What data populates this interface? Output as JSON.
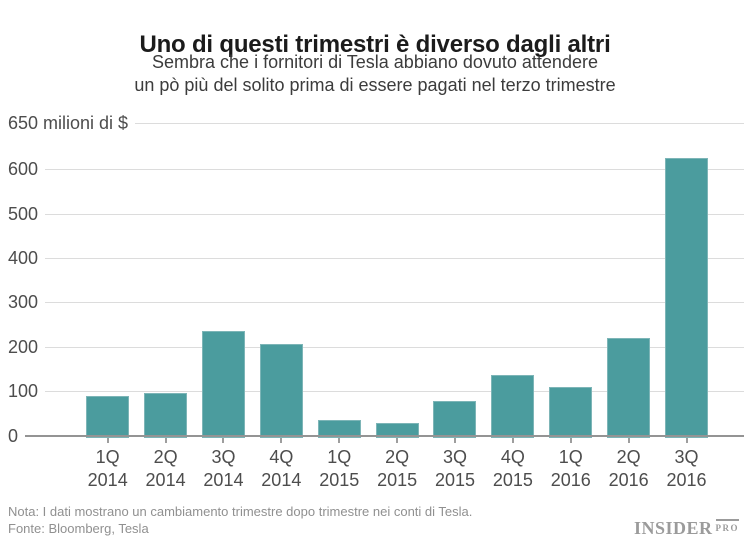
{
  "header": {
    "title": "Uno di questi trimestri è diverso dagli altri",
    "subtitle_line1": "Sembra che i fornitori di Tesla abbiano dovuto attendere",
    "subtitle_line2": "un pò più del solito prima di essere pagati nel terzo trimestre"
  },
  "chart_data": {
    "type": "bar",
    "title": "Uno di questi trimestri è diverso dagli altri",
    "subtitle": "Sembra che i fornitori di Tesla abbiano dovuto attendere un pò più del solito prima di essere pagati nel terzo trimestre",
    "y_axis_top_label": "650 milioni di $",
    "ylabel": "milioni di $",
    "xlabel": "",
    "ylim": [
      0,
      650
    ],
    "y_ticks": [
      0,
      100,
      200,
      300,
      400,
      500,
      600
    ],
    "grid": true,
    "legend": "none",
    "categories": [
      {
        "quarter": "1Q",
        "year": "2014"
      },
      {
        "quarter": "2Q",
        "year": "2014"
      },
      {
        "quarter": "3Q",
        "year": "2014"
      },
      {
        "quarter": "4Q",
        "year": "2014"
      },
      {
        "quarter": "1Q",
        "year": "2015"
      },
      {
        "quarter": "2Q",
        "year": "2015"
      },
      {
        "quarter": "3Q",
        "year": "2015"
      },
      {
        "quarter": "4Q",
        "year": "2015"
      },
      {
        "quarter": "1Q",
        "year": "2016"
      },
      {
        "quarter": "2Q",
        "year": "2016"
      },
      {
        "quarter": "3Q",
        "year": "2016"
      }
    ],
    "values": [
      90,
      98,
      238,
      208,
      36,
      30,
      80,
      139,
      112,
      222,
      626
    ]
  },
  "footer": {
    "note": "Nota: I dati mostrano un cambiamento trimestre dopo trimestre nei conti di Tesla.",
    "source": "Fonte: Bloomberg, Tesla",
    "logo_main": "INSIDER",
    "logo_sub": "PRO"
  },
  "colors": {
    "bar": "#4b9c9e",
    "bar_border": "#7db5b7",
    "grid": "#dcdcdc",
    "axis": "#949494",
    "tick": "#9e9e9e",
    "title": "#1b1b1b",
    "subtitle": "#3c3c3c",
    "axis_label": "#4d4d4d",
    "footer_text": "#909090",
    "logo": "#9b9b9b",
    "background": "#ffffff"
  }
}
